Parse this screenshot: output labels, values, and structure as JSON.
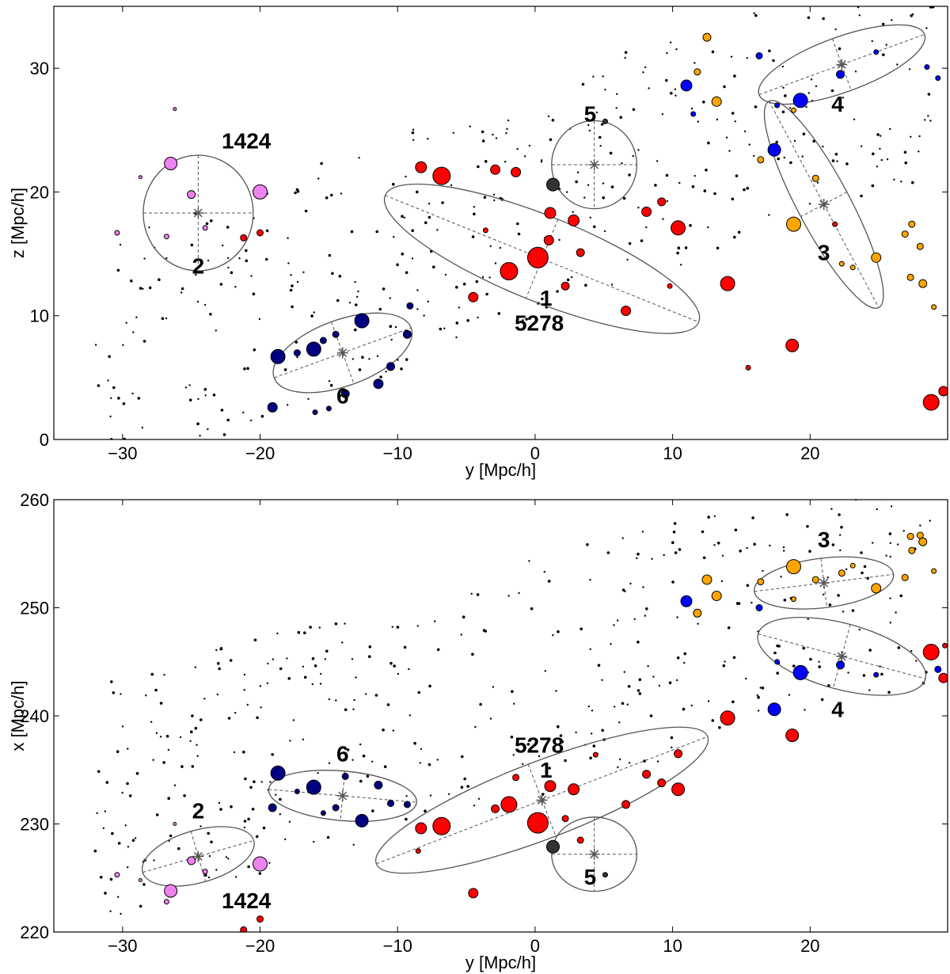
{
  "colors": {
    "red": "#ff0000",
    "navy": "#000080",
    "blue": "#0000ff",
    "orange": "#ffa500",
    "violet": "#ee82ee",
    "dark": "#333333",
    "black": "#000000",
    "ellipse": "#555555"
  },
  "chart_data": [
    {
      "type": "scatter",
      "title": "",
      "xlabel": "y [Mpc/h]",
      "ylabel": "z [Mpc/h]",
      "xlim": [
        -35,
        30
      ],
      "ylim": [
        0,
        35
      ],
      "xticks": [
        -30,
        -20,
        -10,
        0,
        10,
        20
      ],
      "yticks": [
        0,
        10,
        20,
        30
      ],
      "annotations": [
        {
          "text": "1",
          "x": 0.8,
          "y": 10.8
        },
        {
          "text": "5278",
          "x": 0.3,
          "y": 8.8
        },
        {
          "text": "2",
          "x": -24.5,
          "y": 13.4
        },
        {
          "text": "1424",
          "x": -21.0,
          "y": 23.5
        },
        {
          "text": "3",
          "x": 21.0,
          "y": 14.5
        },
        {
          "text": "4",
          "x": 22.0,
          "y": 26.5
        },
        {
          "text": "5",
          "x": 4.0,
          "y": 25.7
        },
        {
          "text": "6",
          "x": -14.0,
          "y": 2.9
        }
      ],
      "ellipses": [
        {
          "cx": 0.5,
          "cy": 14.6,
          "a": 12.3,
          "b": 3.1,
          "angle": -22
        },
        {
          "cx": -24.5,
          "cy": 18.3,
          "a": 4.0,
          "b": 4.2,
          "angle": 0
        },
        {
          "cx": 21.0,
          "cy": 19.0,
          "a": 8.5,
          "b": 1.9,
          "angle": -62
        },
        {
          "cx": 22.3,
          "cy": 30.3,
          "a": 6.4,
          "b": 2.0,
          "angle": 20
        },
        {
          "cx": 4.3,
          "cy": 22.2,
          "a": 3.1,
          "b": 3.2,
          "angle": 0
        },
        {
          "cx": -14.0,
          "cy": 7.0,
          "a": 5.3,
          "b": 2.4,
          "angle": 20
        }
      ],
      "series": [
        {
          "name": "Red group",
          "color": "red",
          "points": [
            [
              0.2,
              14.7,
              13
            ],
            [
              -1.9,
              13.6,
              11
            ],
            [
              -6.8,
              21.3,
              11
            ],
            [
              14.0,
              12.6,
              9
            ],
            [
              18.7,
              7.6,
              8
            ],
            [
              10.4,
              17.1,
              9
            ],
            [
              1.1,
              18.3,
              7
            ],
            [
              2.8,
              17.7,
              7
            ],
            [
              -8.3,
              22.0,
              7
            ],
            [
              -4.5,
              11.5,
              6
            ],
            [
              1.0,
              16.1,
              6
            ],
            [
              -1.4,
              21.6,
              6
            ],
            [
              -2.9,
              21.8,
              6
            ],
            [
              6.6,
              10.4,
              6
            ],
            [
              8.1,
              18.4,
              6
            ],
            [
              9.2,
              19.2,
              5
            ],
            [
              2.2,
              12.4,
              5
            ],
            [
              3.3,
              15.1,
              5
            ],
            [
              28.8,
              3.0,
              10
            ],
            [
              29.7,
              3.9,
              6
            ],
            [
              -21.2,
              16.3,
              4
            ],
            [
              -20.0,
              16.7,
              4
            ],
            [
              -3.6,
              16.9,
              3
            ],
            [
              9.8,
              12.4,
              3
            ],
            [
              15.5,
              5.8,
              3
            ],
            [
              21.8,
              17.4,
              3
            ]
          ]
        },
        {
          "name": "Navy group",
          "color": "navy",
          "points": [
            [
              -18.7,
              6.7,
              9
            ],
            [
              -16.1,
              7.3,
              9
            ],
            [
              -12.6,
              9.6,
              9
            ],
            [
              -19.1,
              2.6,
              6
            ],
            [
              -11.4,
              4.5,
              6
            ],
            [
              -13.8,
              3.7,
              5
            ],
            [
              -10.5,
              5.9,
              5
            ],
            [
              -9.3,
              8.5,
              5
            ],
            [
              -9.1,
              10.8,
              4
            ],
            [
              -15.4,
              8.0,
              4
            ],
            [
              -17.3,
              7.0,
              4
            ],
            [
              -14.5,
              8.5,
              4
            ],
            [
              -16.0,
              2.2,
              3
            ],
            [
              -15.0,
              2.5,
              3
            ]
          ]
        },
        {
          "name": "Blue group",
          "color": "blue",
          "points": [
            [
              19.3,
              27.4,
              9
            ],
            [
              17.4,
              23.4,
              8
            ],
            [
              11.0,
              28.6,
              7
            ],
            [
              22.2,
              29.5,
              5
            ],
            [
              16.3,
              31.0,
              4
            ],
            [
              24.8,
              31.3,
              3
            ],
            [
              29.3,
              29.2,
              3
            ],
            [
              17.6,
              27.0,
              3
            ],
            [
              28.5,
              30.1,
              3
            ],
            [
              11.5,
              26.3,
              3
            ]
          ]
        },
        {
          "name": "Orange group",
          "color": "orange",
          "points": [
            [
              18.8,
              17.4,
              9
            ],
            [
              24.8,
              14.7,
              6
            ],
            [
              12.5,
              32.5,
              5
            ],
            [
              13.2,
              27.3,
              6
            ],
            [
              11.8,
              29.7,
              4
            ],
            [
              16.4,
              22.6,
              4
            ],
            [
              20.4,
              21.1,
              4
            ],
            [
              22.3,
              14.2,
              3
            ],
            [
              27.3,
              13.1,
              4
            ],
            [
              28.2,
              12.6,
              5
            ],
            [
              28.0,
              15.6,
              4
            ],
            [
              26.9,
              16.6,
              4
            ],
            [
              27.4,
              17.4,
              4
            ],
            [
              23.1,
              13.9,
              3
            ],
            [
              18.8,
              26.6,
              3
            ],
            [
              29.0,
              10.7,
              3
            ]
          ]
        },
        {
          "name": "Violet group",
          "color": "violet",
          "points": [
            [
              -26.5,
              22.3,
              8
            ],
            [
              -20.0,
              20.0,
              9
            ],
            [
              -25.0,
              19.8,
              5
            ],
            [
              -26.8,
              16.4,
              3
            ],
            [
              -30.4,
              16.7,
              3
            ],
            [
              -26.2,
              26.7,
              2
            ],
            [
              -28.7,
              21.2,
              2
            ],
            [
              -24.0,
              17.1,
              3
            ]
          ]
        },
        {
          "name": "Dark group",
          "color": "dark",
          "points": [
            [
              1.3,
              20.6,
              8
            ],
            [
              5.1,
              25.7,
              3
            ]
          ]
        }
      ]
    },
    {
      "type": "scatter",
      "title": "",
      "xlabel": "y [Mpc/h]",
      "ylabel": "x [Mpc/h]",
      "xlim": [
        -35,
        30
      ],
      "ylim": [
        220,
        260
      ],
      "xticks": [
        -30,
        -20,
        -10,
        0,
        10,
        20
      ],
      "yticks": [
        220,
        230,
        240,
        250,
        260
      ],
      "annotations": [
        {
          "text": "5278",
          "x": 0.3,
          "y": 236.6
        },
        {
          "text": "1",
          "x": 0.8,
          "y": 234.3
        },
        {
          "text": "2",
          "x": -24.5,
          "y": 230.5
        },
        {
          "text": "1424",
          "x": -21.0,
          "y": 222.2
        },
        {
          "text": "3",
          "x": 21.0,
          "y": 255.6
        },
        {
          "text": "4",
          "x": 22.0,
          "y": 239.9
        },
        {
          "text": "5",
          "x": 4.0,
          "y": 224.4
        },
        {
          "text": "6",
          "x": -14.0,
          "y": 235.8
        }
      ],
      "ellipses": [
        {
          "cx": 0.5,
          "cy": 232.2,
          "a": 12.9,
          "b": 2.8,
          "angle": 21
        },
        {
          "cx": -24.5,
          "cy": 227.0,
          "a": 4.2,
          "b": 1.9,
          "angle": 16
        },
        {
          "cx": 21.0,
          "cy": 252.3,
          "a": 5.1,
          "b": 1.8,
          "angle": 7
        },
        {
          "cx": 22.3,
          "cy": 245.5,
          "a": 6.3,
          "b": 2.4,
          "angle": -15
        },
        {
          "cx": 4.3,
          "cy": 227.2,
          "a": 3.1,
          "b": 2.7,
          "angle": 0
        },
        {
          "cx": -14.0,
          "cy": 232.6,
          "a": 5.4,
          "b": 1.8,
          "angle": -5
        }
      ],
      "series": [
        {
          "name": "Red group",
          "color": "red",
          "points": [
            [
              0.2,
              230.1,
              13
            ],
            [
              -6.8,
              229.8,
              11
            ],
            [
              -1.9,
              231.8,
              10
            ],
            [
              14.0,
              239.8,
              9
            ],
            [
              18.7,
              238.2,
              8
            ],
            [
              28.8,
              245.9,
              10
            ],
            [
              10.4,
              233.2,
              8
            ],
            [
              1.1,
              233.5,
              7
            ],
            [
              2.8,
              233.2,
              7
            ],
            [
              -8.3,
              229.6,
              7
            ],
            [
              -4.5,
              223.6,
              6
            ],
            [
              -2.9,
              231.4,
              5
            ],
            [
              6.6,
              231.8,
              5
            ],
            [
              8.1,
              234.6,
              5
            ],
            [
              9.2,
              233.8,
              5
            ],
            [
              10.4,
              236.5,
              5
            ],
            [
              29.7,
              243.5,
              6
            ],
            [
              -21.2,
              220.2,
              4
            ],
            [
              -20.0,
              221.2,
              4
            ],
            [
              2.2,
              230.5,
              4
            ],
            [
              3.3,
              228.5,
              4
            ],
            [
              -1.4,
              234.3,
              4
            ],
            [
              -8.5,
              227.5,
              3
            ],
            [
              4.4,
              236.4,
              3
            ],
            [
              29.8,
              246.5,
              3
            ]
          ]
        },
        {
          "name": "Navy group",
          "color": "navy",
          "points": [
            [
              -18.7,
              234.7,
              9
            ],
            [
              -16.1,
              233.4,
              9
            ],
            [
              -12.6,
              230.3,
              8
            ],
            [
              -19.1,
              231.5,
              5
            ],
            [
              -11.4,
              233.6,
              5
            ],
            [
              -13.8,
              234.4,
              4
            ],
            [
              -10.5,
              231.9,
              4
            ],
            [
              -9.3,
              231.8,
              4
            ],
            [
              -14.5,
              231.5,
              4
            ],
            [
              -15.4,
              231.0,
              3
            ],
            [
              -17.3,
              233.0,
              3
            ]
          ]
        },
        {
          "name": "Blue group",
          "color": "blue",
          "points": [
            [
              19.3,
              244.0,
              9
            ],
            [
              17.4,
              240.6,
              8
            ],
            [
              11.0,
              250.6,
              7
            ],
            [
              22.2,
              244.7,
              5
            ],
            [
              16.3,
              250.0,
              4
            ],
            [
              24.8,
              243.8,
              3
            ],
            [
              29.3,
              244.3,
              4
            ],
            [
              17.6,
              245.0,
              3
            ]
          ]
        },
        {
          "name": "Orange group",
          "color": "orange",
          "points": [
            [
              18.8,
              253.8,
              9
            ],
            [
              24.8,
              251.8,
              6
            ],
            [
              12.5,
              252.6,
              6
            ],
            [
              13.2,
              251.1,
              6
            ],
            [
              11.8,
              249.5,
              5
            ],
            [
              16.4,
              252.4,
              4
            ],
            [
              20.4,
              252.6,
              4
            ],
            [
              22.3,
              253.2,
              4
            ],
            [
              27.3,
              256.6,
              4
            ],
            [
              28.2,
              256.1,
              5
            ],
            [
              28.0,
              256.7,
              4
            ],
            [
              27.4,
              255.3,
              4
            ],
            [
              23.1,
              253.9,
              3
            ],
            [
              26.9,
              252.8,
              4
            ],
            [
              18.8,
              250.8,
              3
            ],
            [
              29.0,
              253.4,
              3
            ]
          ]
        },
        {
          "name": "Violet group",
          "color": "violet",
          "points": [
            [
              -26.5,
              223.8,
              8
            ],
            [
              -20.0,
              226.3,
              9
            ],
            [
              -25.0,
              226.6,
              5
            ],
            [
              -26.8,
              222.8,
              3
            ],
            [
              -30.4,
              225.3,
              3
            ],
            [
              -26.2,
              230.0,
              2
            ],
            [
              -28.7,
              224.8,
              2
            ],
            [
              -24.0,
              225.6,
              3
            ]
          ]
        },
        {
          "name": "Dark group",
          "color": "dark",
          "points": [
            [
              1.3,
              227.9,
              8
            ],
            [
              5.1,
              225.3,
              3
            ]
          ]
        }
      ]
    }
  ]
}
